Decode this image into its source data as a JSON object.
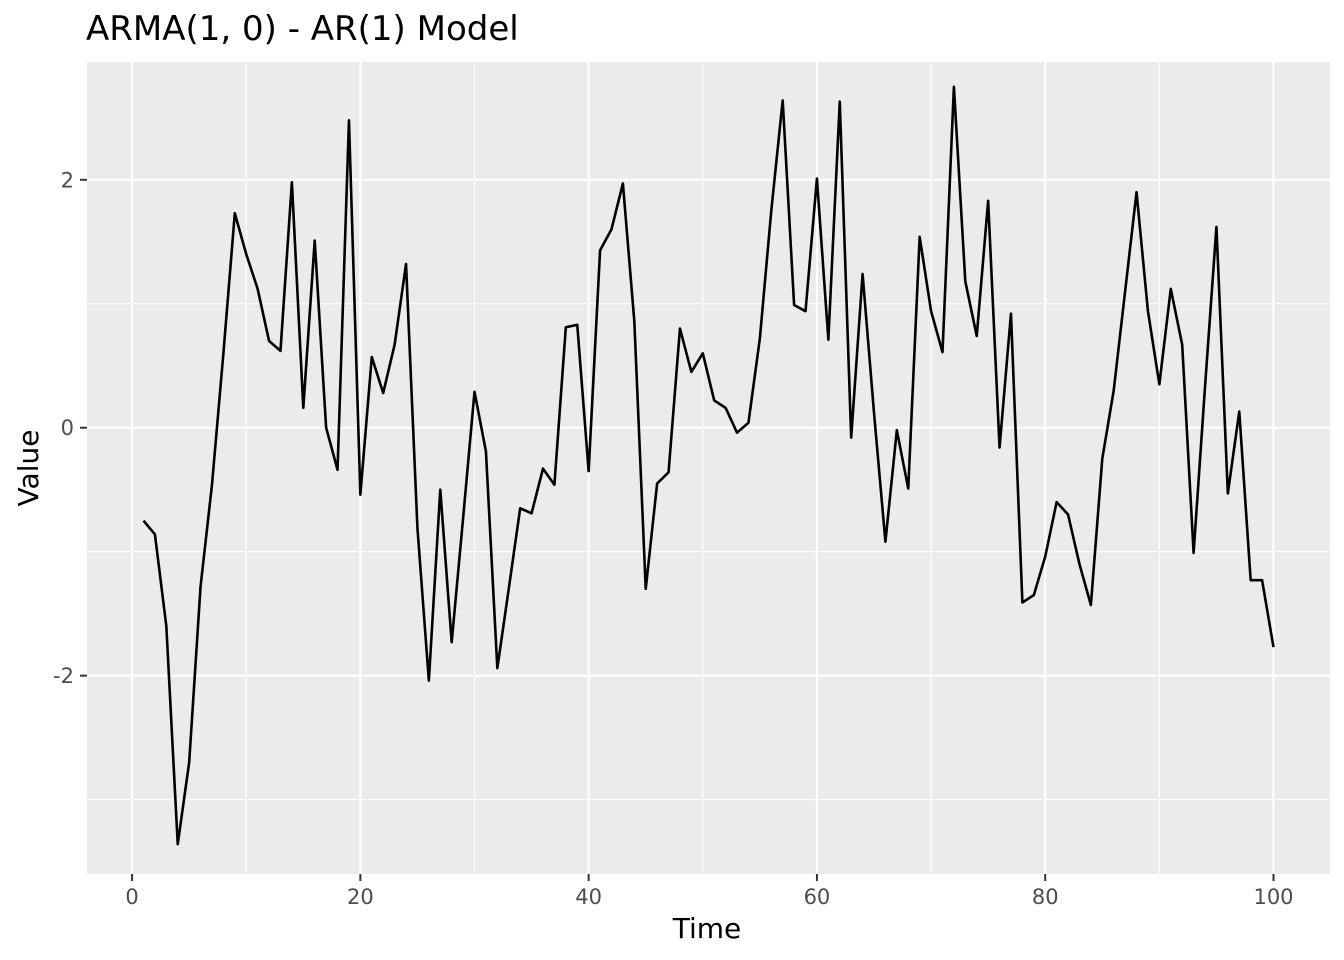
{
  "chart_data": {
    "type": "line",
    "title": "ARMA(1, 0) - AR(1) Model",
    "xlabel": "Time",
    "ylabel": "Value",
    "xlim": [
      -3.95,
      104.95
    ],
    "ylim": [
      -3.6,
      2.95
    ],
    "x_ticks": [
      0,
      20,
      40,
      60,
      80,
      100
    ],
    "x_tick_labels": [
      "0",
      "20",
      "40",
      "60",
      "80",
      "100"
    ],
    "x_minor_ticks": [
      10,
      30,
      50,
      70,
      90
    ],
    "y_ticks": [
      -2,
      0,
      2
    ],
    "y_tick_labels": [
      "-2",
      "0",
      "2"
    ],
    "y_minor_ticks": [
      -3,
      -1,
      1
    ],
    "grid": true,
    "legend": "none",
    "colors": {
      "panel_background": "#EBEBEB",
      "grid": "#FFFFFF",
      "line": "#000000",
      "tick_label": "#4D4D4D"
    },
    "series": [
      {
        "x": [
          1,
          2,
          3,
          4,
          5,
          6,
          7,
          8,
          9,
          10,
          11,
          12,
          13,
          14,
          15,
          16,
          17,
          18,
          19,
          20,
          21,
          22,
          23,
          24,
          25,
          26,
          27,
          28,
          29,
          30,
          31,
          32,
          33,
          34,
          35,
          36,
          37,
          38,
          39,
          40,
          41,
          42,
          43,
          44,
          45,
          46,
          47,
          48,
          49,
          50,
          51,
          52,
          53,
          54,
          55,
          56,
          57,
          58,
          59,
          60,
          61,
          62,
          63,
          64,
          65,
          66,
          67,
          68,
          69,
          70,
          71,
          72,
          73,
          74,
          75,
          76,
          77,
          78,
          79,
          80,
          81,
          82,
          83,
          84,
          85,
          86,
          87,
          88,
          89,
          90,
          91,
          92,
          93,
          94,
          95,
          96,
          97,
          98,
          99,
          100
        ],
        "values": [
          -0.75,
          -0.86,
          -1.6,
          -3.36,
          -2.7,
          -1.28,
          -0.46,
          0.6,
          1.73,
          1.4,
          1.12,
          0.7,
          0.62,
          1.98,
          0.16,
          1.51,
          0.0,
          -0.34,
          2.48,
          -0.54,
          0.57,
          0.28,
          0.67,
          1.32,
          -0.81,
          -2.04,
          -0.5,
          -1.73,
          -0.73,
          0.29,
          -0.19,
          -1.94,
          -1.3,
          -0.65,
          -0.69,
          -0.33,
          -0.46,
          0.81,
          0.83,
          -0.35,
          1.43,
          1.6,
          1.97,
          0.86,
          -1.3,
          -0.45,
          -0.36,
          0.8,
          0.45,
          0.6,
          0.22,
          0.16,
          -0.04,
          0.04,
          0.72,
          1.75,
          2.64,
          0.99,
          0.94,
          2.01,
          0.71,
          2.63,
          -0.08,
          1.24,
          0.12,
          -0.92,
          -0.02,
          -0.49,
          1.54,
          0.94,
          0.61,
          2.75,
          1.18,
          0.74,
          1.83,
          -0.16,
          0.92,
          -1.41,
          -1.35,
          -1.04,
          -0.6,
          -0.7,
          -1.1,
          -1.43,
          -0.25,
          0.3,
          1.1,
          1.9,
          0.94,
          0.35,
          1.12,
          0.67,
          -1.01,
          0.33,
          1.62,
          -0.53,
          0.13,
          -1.23,
          -1.23,
          -1.77
        ]
      }
    ]
  }
}
